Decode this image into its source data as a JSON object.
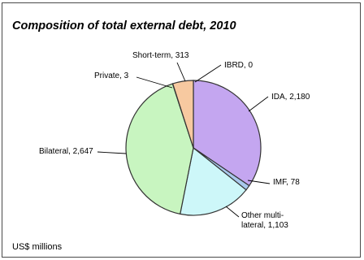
{
  "page": {
    "title": "Composition of total external debt, 2010",
    "footer": "US$ millions"
  },
  "chart_data": {
    "type": "pie",
    "title": "Composition of total external debt, 2010",
    "unit": "US$ millions",
    "slices": [
      {
        "name": "IBRD",
        "value": 0,
        "label": "IBRD, 0",
        "color": "#a87fd4"
      },
      {
        "name": "IDA",
        "value": 2180,
        "label": "IDA, 2,180",
        "color": "#c4a6f0"
      },
      {
        "name": "IMF",
        "value": 78,
        "label": "IMF, 78",
        "color": "#a9c8ec"
      },
      {
        "name": "Other multi-lateral",
        "value": 1103,
        "label_lines": [
          "Other multi-",
          "lateral, 1,103"
        ],
        "color": "#cdf7f9"
      },
      {
        "name": "Bilateral",
        "value": 2647,
        "label": "Bilateral, 2,647",
        "color": "#c8f5c0"
      },
      {
        "name": "Private",
        "value": 3,
        "label": "Private, 3",
        "color": "#f0c8a0"
      },
      {
        "name": "Short-term",
        "value": 313,
        "label": "Short-term, 313",
        "color": "#f7c9a0"
      }
    ]
  }
}
